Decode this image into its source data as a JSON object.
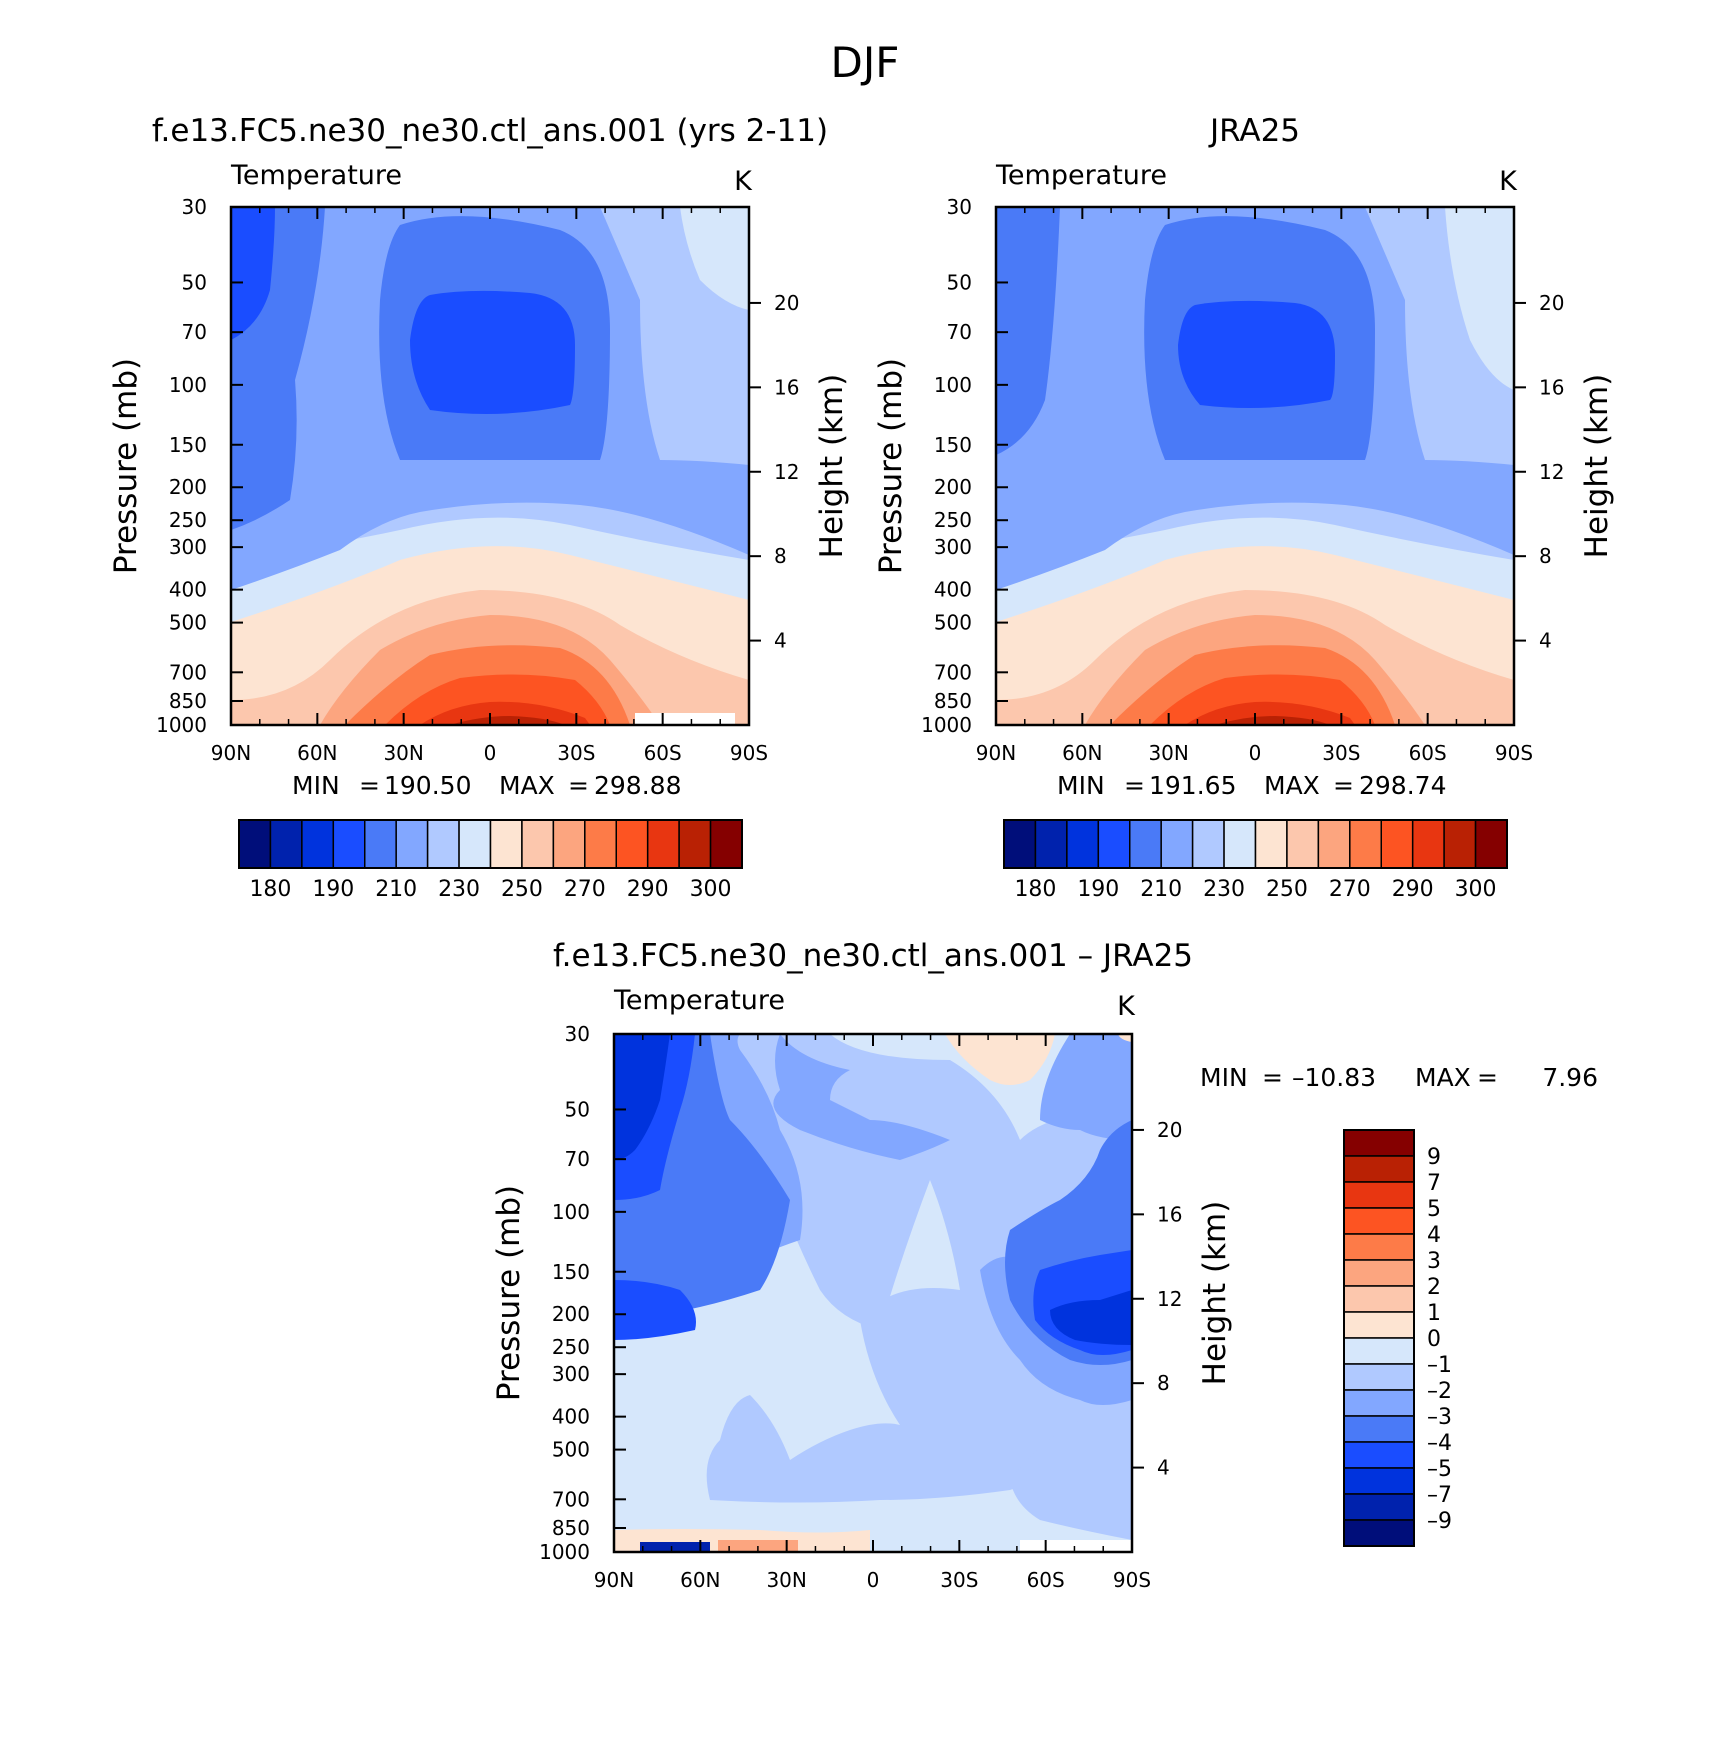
{
  "figure": {
    "title": "DJF"
  },
  "chart_data": [
    {
      "type": "heatmap",
      "title": "f.e13.FC5.ne30_ne30.ctl_ans.001 (yrs 2-11)",
      "subtitle": "Temperature",
      "units": "K",
      "ylabel": "Pressure (mb)",
      "y2label": "Height (km)",
      "x_ticks": [
        "90N",
        "60N",
        "30N",
        "0",
        "30S",
        "60S",
        "90S"
      ],
      "y_ticks": [
        "30",
        "50",
        "70",
        "100",
        "150",
        "200",
        "250",
        "300",
        "400",
        "500",
        "700",
        "850",
        "1000"
      ],
      "y2_ticks": [
        "20",
        "16",
        "12",
        "8",
        "4"
      ],
      "stats": {
        "min_label": "MIN",
        "min": "190.50",
        "max_label": "MAX",
        "max": "298.88"
      },
      "colorbar_labels": [
        "180",
        "190",
        "210",
        "230",
        "250",
        "270",
        "290",
        "300"
      ]
    },
    {
      "type": "heatmap",
      "title": "JRA25",
      "subtitle": "Temperature",
      "units": "K",
      "ylabel": "Pressure (mb)",
      "y2label": "Height (km)",
      "x_ticks": [
        "90N",
        "60N",
        "30N",
        "0",
        "30S",
        "60S",
        "90S"
      ],
      "y_ticks": [
        "30",
        "50",
        "70",
        "100",
        "150",
        "200",
        "250",
        "300",
        "400",
        "500",
        "700",
        "850",
        "1000"
      ],
      "y2_ticks": [
        "20",
        "16",
        "12",
        "8",
        "4"
      ],
      "stats": {
        "min_label": "MIN",
        "min": "191.65",
        "max_label": "MAX",
        "max": "298.74"
      },
      "colorbar_labels": [
        "180",
        "190",
        "210",
        "230",
        "250",
        "270",
        "290",
        "300"
      ]
    },
    {
      "type": "heatmap",
      "title": "f.e13.FC5.ne30_ne30.ctl_ans.001 – JRA25",
      "subtitle": "Temperature",
      "units": "K",
      "ylabel": "Pressure (mb)",
      "y2label": "Height (km)",
      "x_ticks": [
        "90N",
        "60N",
        "30N",
        "0",
        "30S",
        "60S",
        "90S"
      ],
      "y_ticks": [
        "30",
        "50",
        "70",
        "100",
        "150",
        "200",
        "250",
        "300",
        "400",
        "500",
        "700",
        "850",
        "1000"
      ],
      "y2_ticks": [
        "20",
        "16",
        "12",
        "8",
        "4"
      ],
      "stats": {
        "min_label": "MIN",
        "min": "–10.83",
        "max_label": "MAX",
        "max": "7.96"
      },
      "colorbar_labels": [
        "9",
        "7",
        "5",
        "4",
        "3",
        "2",
        "1",
        "0",
        "–1",
        "–2",
        "–3",
        "–4",
        "–5",
        "–7",
        "–9"
      ]
    }
  ],
  "palette": [
    "#000e7a",
    "#0022ad",
    "#0033dd",
    "#1a4dff",
    "#4a7af7",
    "#82a7ff",
    "#b0c9ff",
    "#d6e7fb",
    "#fde4d2",
    "#fcc7ad",
    "#fca57f",
    "#fd7b48",
    "#fd5422",
    "#e83611",
    "#b92104",
    "#850000"
  ]
}
